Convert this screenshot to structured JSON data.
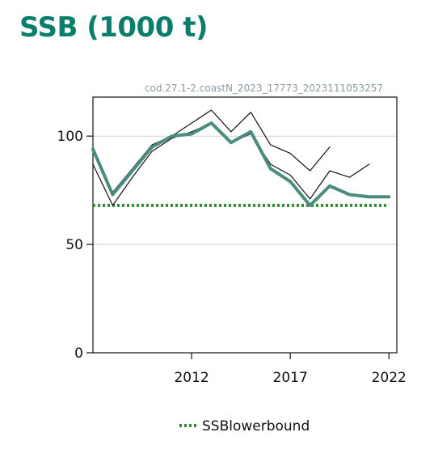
{
  "title": "SSB (1000 t)",
  "chart_data": {
    "type": "line",
    "subtitle": "cod.27.1-2.coastN_2023_17773_2023111053257",
    "xlabel": "",
    "ylabel": "",
    "xlim": [
      2007,
      2022.4
    ],
    "ylim": [
      0,
      118
    ],
    "x_ticks": [
      "2012",
      "2017",
      "2022"
    ],
    "y_ticks": [
      "0",
      "50",
      "100"
    ],
    "grid": "horizontal",
    "legend_position": "bottom",
    "series": [
      {
        "name": "",
        "role": "estimate",
        "color": "#4a8c7f",
        "x": [
          2007,
          2008,
          2009,
          2010,
          2011,
          2012,
          2013,
          2014,
          2015,
          2016,
          2017,
          2018,
          2019,
          2020,
          2021,
          2022
        ],
        "y": [
          94,
          73,
          84,
          95,
          100,
          101,
          106,
          97,
          102,
          85,
          79,
          68,
          77,
          73,
          72,
          72
        ]
      },
      {
        "name": "",
        "role": "upper-bound",
        "color": "#111111",
        "x": [
          2007,
          2008,
          2009,
          2010,
          2011,
          2012,
          2013,
          2014,
          2015,
          2016,
          2017,
          2018,
          2019,
          2020
        ],
        "y": [
          94,
          74,
          85,
          96,
          100,
          106,
          112,
          102,
          111,
          96,
          92,
          84,
          95,
          null
        ]
      },
      {
        "name": "",
        "role": "lower-bound",
        "color": "#111111",
        "x": [
          2007,
          2008,
          2009,
          2010,
          2011,
          2012,
          2013,
          2014,
          2015,
          2016,
          2017,
          2018,
          2019,
          2020,
          2021,
          2022
        ],
        "y": [
          87,
          68,
          81,
          93,
          99,
          102,
          106,
          97,
          101,
          87,
          82,
          71,
          84,
          81,
          87,
          null
        ]
      },
      {
        "name": "SSBlowerbound",
        "role": "reference",
        "color": "#2e8b2e",
        "x": [
          2007,
          2022
        ],
        "y": [
          68,
          68
        ]
      }
    ],
    "legend": [
      "SSBlowerbound"
    ]
  }
}
